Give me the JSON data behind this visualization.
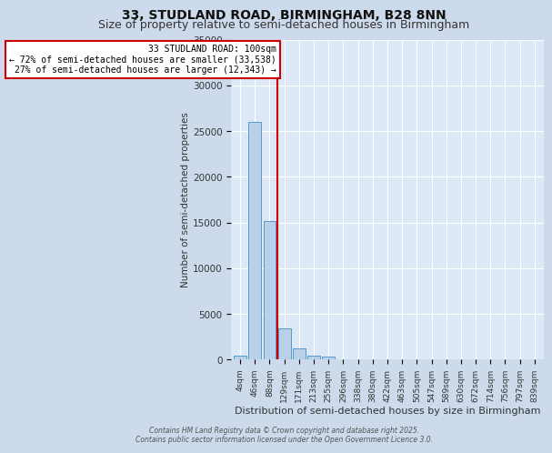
{
  "title": "33, STUDLAND ROAD, BIRMINGHAM, B28 8NN",
  "subtitle": "Size of property relative to semi-detached houses in Birmingham",
  "xlabel": "Distribution of semi-detached houses by size in Birmingham",
  "ylabel": "Number of semi-detached properties",
  "categories": [
    "4sqm",
    "46sqm",
    "88sqm",
    "129sqm",
    "171sqm",
    "213sqm",
    "255sqm",
    "296sqm",
    "338sqm",
    "380sqm",
    "422sqm",
    "463sqm",
    "505sqm",
    "547sqm",
    "589sqm",
    "630sqm",
    "672sqm",
    "714sqm",
    "756sqm",
    "797sqm",
    "839sqm"
  ],
  "values": [
    400,
    26000,
    15200,
    3400,
    1200,
    400,
    300,
    0,
    0,
    0,
    0,
    0,
    0,
    0,
    0,
    0,
    0,
    0,
    0,
    0,
    0
  ],
  "ylim": [
    0,
    35000
  ],
  "bar_color": "#b8d0e8",
  "bar_edge_color": "#5599cc",
  "vline_color": "#cc0000",
  "vline_x": 2.5,
  "annotation_title": "33 STUDLAND ROAD: 100sqm",
  "annotation_line1": "← 72% of semi-detached houses are smaller (33,538)",
  "annotation_line2": "27% of semi-detached houses are larger (12,343) →",
  "annotation_box_color": "#ffffff",
  "annotation_box_edge": "#cc0000",
  "background_color": "#ccdaeb",
  "plot_bg_color": "#dce8f5",
  "grid_color": "#ffffff",
  "title_fontsize": 10,
  "subtitle_fontsize": 9,
  "footer1": "Contains HM Land Registry data © Crown copyright and database right 2025.",
  "footer2": "Contains public sector information licensed under the Open Government Licence 3.0."
}
